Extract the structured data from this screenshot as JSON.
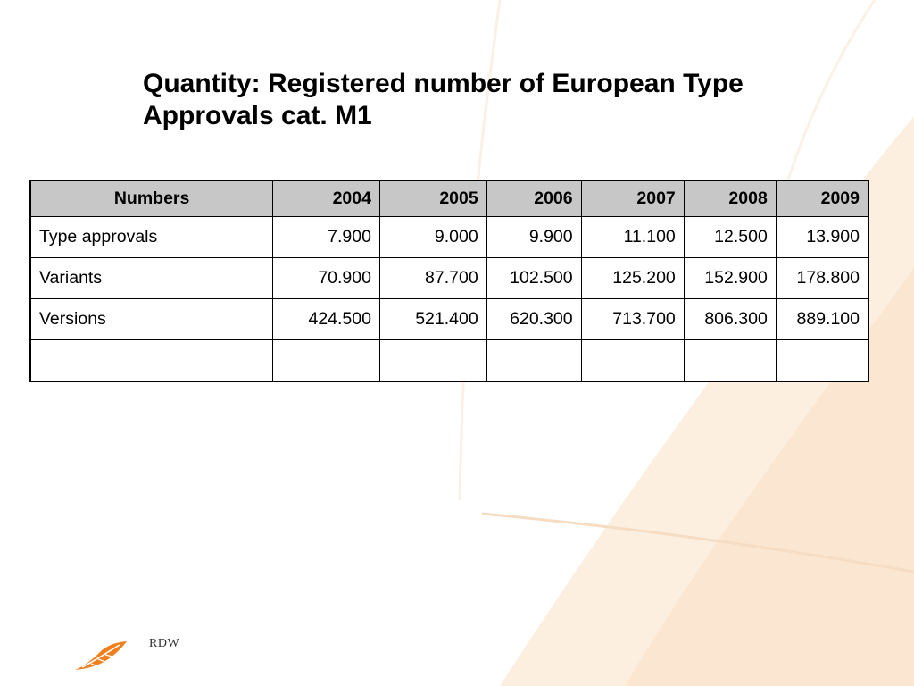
{
  "slide": {
    "title_line1": "Quantity: Registered number of European Type",
    "title_line2": "Approvals cat. M1"
  },
  "table": {
    "headers": [
      "Numbers",
      "2004",
      "2005",
      "2006",
      "2007",
      "2008",
      "2009"
    ],
    "rows": [
      {
        "label": "Type approvals",
        "values": [
          "7.900",
          "9.000",
          "9.900",
          "11.100",
          "12.500",
          "13.900"
        ]
      },
      {
        "label": "Variants",
        "values": [
          "70.900",
          "87.700",
          "102.500",
          "125.200",
          "152.900",
          "178.800"
        ]
      },
      {
        "label": "Versions",
        "values": [
          "424.500",
          "521.400",
          "620.300",
          "713.700",
          "806.300",
          "889.100"
        ]
      },
      {
        "label": "",
        "values": [
          "",
          "",
          "",
          "",
          "",
          ""
        ]
      }
    ]
  },
  "footer": {
    "logo_text": "RDW",
    "logo_icon": "rdw-leaf-logo-icon"
  },
  "colors": {
    "header_fill": "#c7c7c7",
    "accent": "#f07f1e",
    "background_decor": "#fbe9d6"
  }
}
